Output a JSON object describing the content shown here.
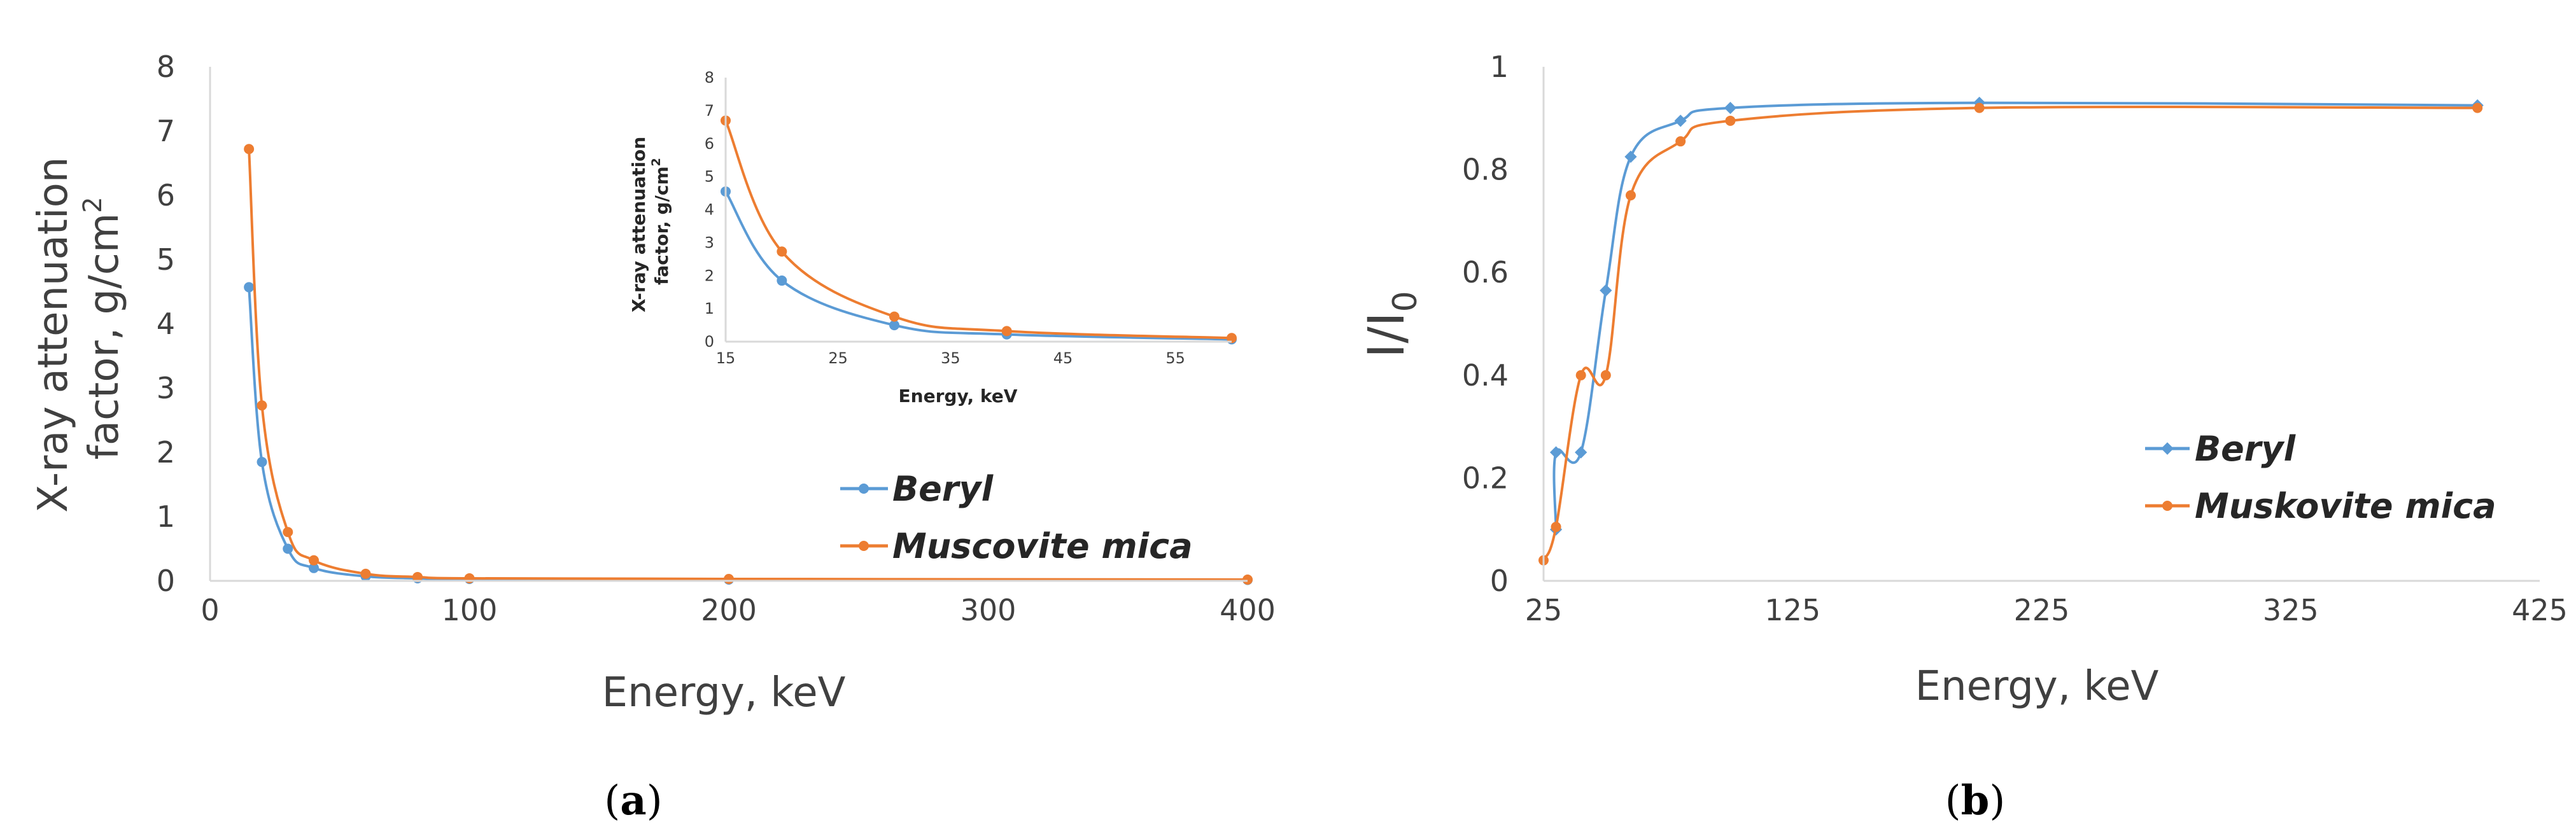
{
  "panel_labels": {
    "a": "a",
    "b": "b"
  },
  "chart_data": [
    {
      "id": "panel-a",
      "type": "line",
      "title": "",
      "xlabel": "Energy, keV",
      "ylabel": "X-ray attenuation factor, g/cm²",
      "ylabel_lines": [
        "X-ray attenuation",
        "factor, g/cm"
      ],
      "ylabel_sup": "2",
      "xlim": [
        0,
        400
      ],
      "ylim": [
        0,
        8
      ],
      "xticks": [
        0,
        100,
        200,
        300,
        400
      ],
      "yticks": [
        0,
        1,
        2,
        3,
        4,
        5,
        6,
        7,
        8
      ],
      "grid": false,
      "legend_position": "center-right",
      "series": [
        {
          "name": "Beryl",
          "color": "#5b9bd5",
          "marker": "circle",
          "x": [
            15,
            20,
            30,
            40,
            60,
            80,
            100,
            200,
            400
          ],
          "y": [
            4.57,
            1.85,
            0.5,
            0.2,
            0.07,
            0.04,
            0.03,
            0.02,
            0.015
          ]
        },
        {
          "name": "Muscovite mica",
          "color": "#ed7d31",
          "marker": "circle",
          "x": [
            15,
            20,
            30,
            40,
            60,
            80,
            100,
            200,
            400
          ],
          "y": [
            6.72,
            2.73,
            0.76,
            0.32,
            0.11,
            0.06,
            0.04,
            0.03,
            0.02
          ]
        }
      ],
      "inset": {
        "xlabel": "Energy, keV",
        "ylabel_lines": [
          "X-ray attenuation",
          "factor, g/cm"
        ],
        "ylabel_sup": "2",
        "xlim": [
          15,
          60
        ],
        "ylim": [
          0,
          8
        ],
        "xticks": [
          15,
          25,
          35,
          45,
          55
        ],
        "yticks": [
          0,
          1,
          2,
          3,
          4,
          5,
          6,
          7,
          8
        ],
        "series": [
          {
            "name": "Beryl",
            "color": "#5b9bd5",
            "x": [
              15,
              20,
              30,
              40,
              60
            ],
            "y": [
              4.55,
              1.85,
              0.5,
              0.22,
              0.07
            ]
          },
          {
            "name": "Muscovite mica",
            "color": "#ed7d31",
            "x": [
              15,
              20,
              30,
              40,
              60
            ],
            "y": [
              6.7,
              2.73,
              0.76,
              0.32,
              0.11
            ]
          }
        ]
      }
    },
    {
      "id": "panel-b",
      "type": "line",
      "title": "",
      "xlabel": "Energy, keV",
      "ylabel": "I/I0",
      "ylabel_main": "I/I",
      "ylabel_sub": "0",
      "xlim": [
        25,
        425
      ],
      "ylim": [
        0,
        1
      ],
      "xticks": [
        25,
        125,
        225,
        325,
        425
      ],
      "yticks": [
        0,
        0.2,
        0.4,
        0.6,
        0.8,
        1
      ],
      "grid": false,
      "legend_position": "center-right",
      "series": [
        {
          "name": "Beryl",
          "color": "#5b9bd5",
          "marker": "diamond",
          "x": [
            30,
            30,
            40,
            50,
            60,
            80,
            100,
            200,
            400
          ],
          "y": [
            0.1,
            0.25,
            0.25,
            0.565,
            0.825,
            0.895,
            0.92,
            0.93,
            0.925
          ]
        },
        {
          "name": "Muskovite mica",
          "color": "#ed7d31",
          "marker": "circle",
          "x": [
            25,
            30,
            40,
            50,
            60,
            80,
            100,
            200,
            400
          ],
          "y": [
            0.04,
            0.105,
            0.4,
            0.4,
            0.75,
            0.855,
            0.895,
            0.92,
            0.92
          ]
        }
      ]
    }
  ]
}
